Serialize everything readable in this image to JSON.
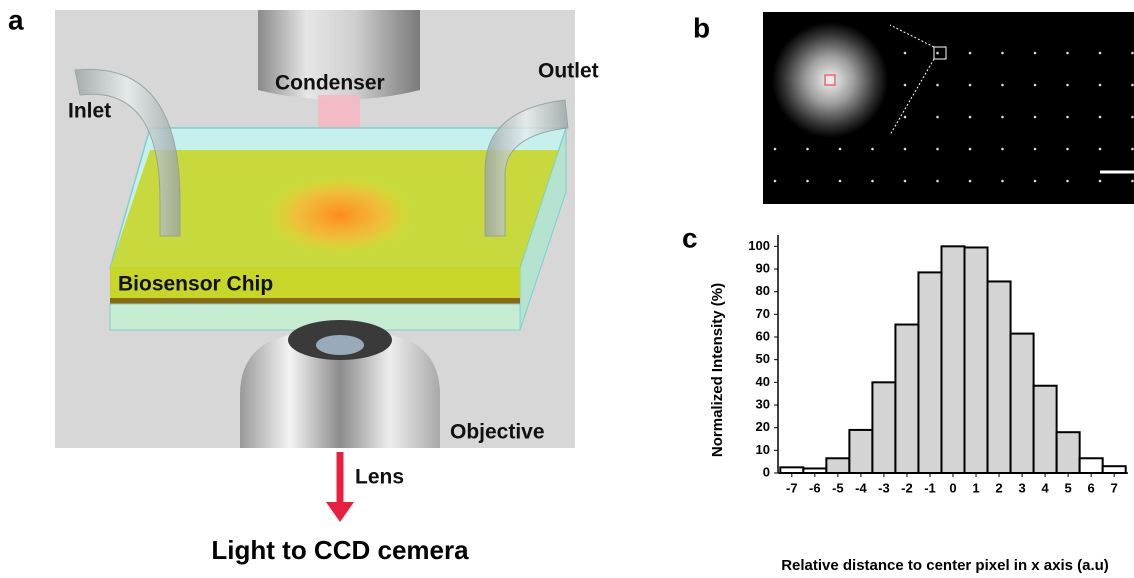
{
  "panel_a": {
    "label": "a",
    "condenser": "Condenser",
    "inlet": "Inlet",
    "outlet": "Outlet",
    "chip": "Biosensor Chip",
    "objective": "Objective",
    "lens": "Lens",
    "caption": "Light to CCD cemera"
  },
  "panel_b": {
    "label": "b"
  },
  "chart_data": {
    "type": "histogram",
    "panel_label": "c",
    "xlabel": "Relative distance to center pixel in x axis (a.u)",
    "ylabel": "Normalized Intensity (%)",
    "bins": [
      -7.5,
      -6.5,
      -5.5,
      -4.5,
      -3.5,
      -2.5,
      -1.5,
      -0.5,
      0.5,
      1.5,
      2.5,
      3.5,
      4.5,
      5.5,
      6.5,
      7.5
    ],
    "values": [
      2.5,
      2,
      6.5,
      19,
      40,
      65.5,
      88.5,
      100,
      99.5,
      84.5,
      61.5,
      38.5,
      18,
      6.5,
      3
    ],
    "colors": [
      "#ffffff",
      "#ffffff",
      "#d4d4d4",
      "#d4d4d4",
      "#d4d4d4",
      "#d4d4d4",
      "#d4d4d4",
      "#d4d4d4",
      "#d4d4d4",
      "#d4d4d4",
      "#d4d4d4",
      "#d4d4d4",
      "#d4d4d4",
      "#ffffff",
      "#ffffff"
    ],
    "xlim": [
      -7.6,
      7.6
    ],
    "xticks": [
      -7,
      -6,
      -5,
      -4,
      -3,
      -2,
      -1,
      0,
      1,
      2,
      3,
      4,
      5,
      6,
      7
    ],
    "ylim": [
      0,
      105
    ],
    "yticks": [
      0,
      10,
      20,
      30,
      40,
      50,
      60,
      70,
      80,
      90,
      100
    ]
  }
}
